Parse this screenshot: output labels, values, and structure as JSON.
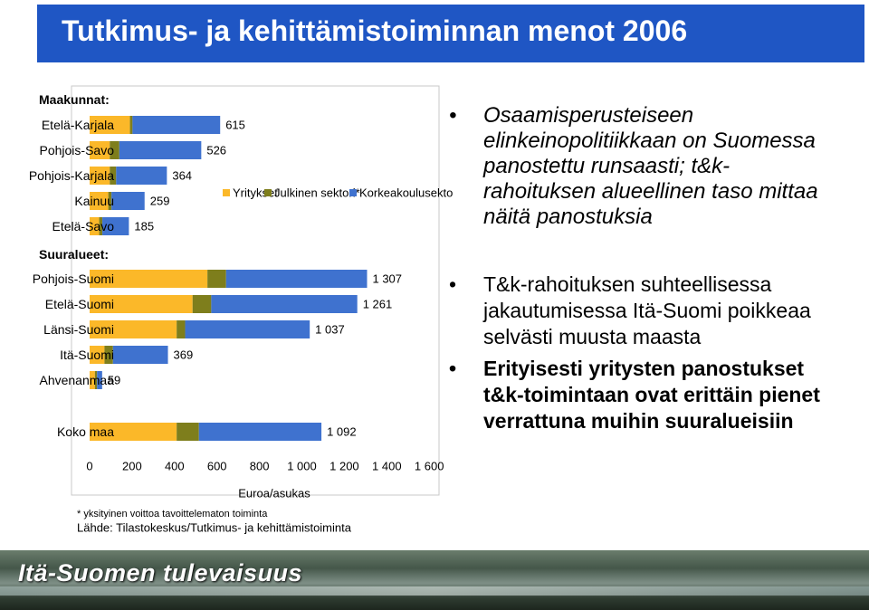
{
  "slide": {
    "title": "Tutkimus- ja kehittämistoiminnan menot 2006",
    "bullets_top": [
      "Osaamisperusteiseen elinkeinopolitiikkaan on Suomessa panostettu runsaasti; t&k-rahoituksen alueellinen taso mittaa näitä panostuksia"
    ],
    "bullets_bottom": [
      {
        "text": "T&k-rahoituksen suhteellisessa jakautumisessa Itä-Suomi poikkeaa selvästi muusta maasta",
        "bold": false
      },
      {
        "text": "Erityisesti yritysten panostukset t&k-toimintaan ovat erittäin pienet verrattuna muihin suuralueisiin",
        "bold": true
      }
    ],
    "bullet_symbol": "•",
    "footer_banner": "Itä-Suomen tulevaisuus",
    "colors": {
      "title_bg": "#1f56c4"
    }
  },
  "chart_data": {
    "type": "bar",
    "orientation": "horizontal",
    "stacked": true,
    "group_labels": {
      "maakunnat": "Maakunnat:",
      "suuralueet": "Suuralueet:"
    },
    "categories": [
      "Etelä-Karjala",
      "Pohjois-Savo",
      "Pohjois-Karjala",
      "Kainuu",
      "Etelä-Savo",
      "Pohjois-Suomi",
      "Etelä-Suomi",
      "Länsi-Suomi",
      "Itä-Suomi",
      "Ahvenanmaa",
      "Koko maa"
    ],
    "groups": [
      "maakunnat",
      "maakunnat",
      "maakunnat",
      "maakunnat",
      "maakunnat",
      "suuralueet",
      "suuralueet",
      "suuralueet",
      "suuralueet",
      "suuralueet",
      "koko"
    ],
    "series": [
      {
        "name": "Yritykset",
        "color": "#fbb829",
        "values": [
          190,
          95,
          95,
          88,
          45,
          555,
          485,
          410,
          70,
          25,
          410
        ]
      },
      {
        "name": "Julkinen sektori*",
        "color": "#7e7e1c",
        "values": [
          12,
          45,
          30,
          15,
          15,
          88,
          88,
          40,
          40,
          10,
          105
        ]
      },
      {
        "name": "Korkeakoulusektori",
        "color": "#3f72cf",
        "values": [
          413,
          386,
          239,
          156,
          125,
          664,
          688,
          587,
          259,
          24,
          577
        ]
      }
    ],
    "totals": [
      "615",
      "526",
      "364",
      "259",
      "185",
      "1 307",
      "1 261",
      "1 037",
      "369",
      "59",
      "1 092"
    ],
    "xlabel": "Euroa/asukas",
    "xticks": [
      "0",
      "200",
      "400",
      "600",
      "800",
      "1 000",
      "1 200",
      "1 400",
      "1 600"
    ],
    "xlim": [
      0,
      1600
    ],
    "legend_position": "top-right",
    "footnotes": [
      "* yksityinen voittoa tavoittelematon toiminta",
      "Lähde: Tilastokeskus/Tutkimus- ja kehittämistoiminta"
    ]
  }
}
